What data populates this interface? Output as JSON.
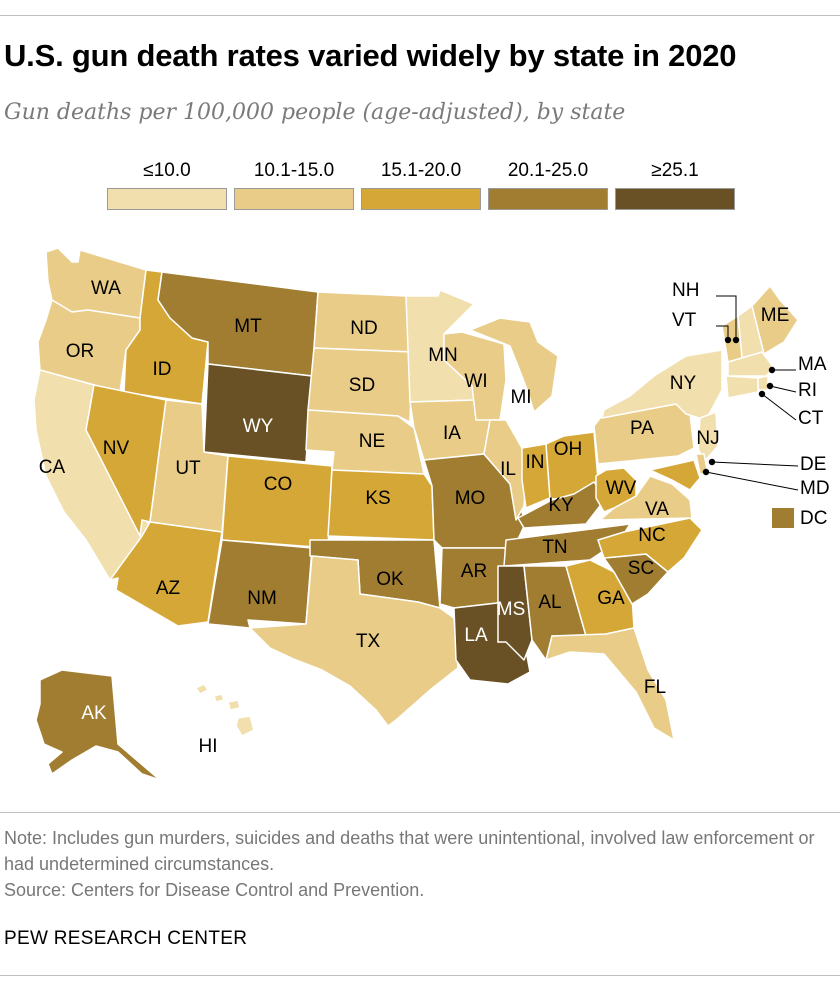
{
  "header": {
    "title": "U.S. gun death rates varied widely by state in 2020",
    "subtitle": "Gun deaths per 100,000 people (age-adjusted), by state"
  },
  "legend": {
    "items": [
      {
        "label": "≤10.0",
        "color": "#f2dfae"
      },
      {
        "label": "10.1-15.0",
        "color": "#e8cc87"
      },
      {
        "label": "15.1-20.0",
        "color": "#d5a736"
      },
      {
        "label": "20.1-25.0",
        "color": "#a17d32"
      },
      {
        "label": "≥25.1",
        "color": "#6a5125"
      }
    ]
  },
  "map": {
    "states": [
      {
        "abbr": "WA",
        "bin": 1
      },
      {
        "abbr": "OR",
        "bin": 1
      },
      {
        "abbr": "CA",
        "bin": 0
      },
      {
        "abbr": "ID",
        "bin": 2
      },
      {
        "abbr": "NV",
        "bin": 2
      },
      {
        "abbr": "MT",
        "bin": 3
      },
      {
        "abbr": "WY",
        "bin": 4
      },
      {
        "abbr": "UT",
        "bin": 1
      },
      {
        "abbr": "AZ",
        "bin": 2
      },
      {
        "abbr": "CO",
        "bin": 2
      },
      {
        "abbr": "NM",
        "bin": 3
      },
      {
        "abbr": "ND",
        "bin": 1
      },
      {
        "abbr": "SD",
        "bin": 1
      },
      {
        "abbr": "NE",
        "bin": 1
      },
      {
        "abbr": "KS",
        "bin": 2
      },
      {
        "abbr": "OK",
        "bin": 3
      },
      {
        "abbr": "TX",
        "bin": 1
      },
      {
        "abbr": "MN",
        "bin": 0
      },
      {
        "abbr": "IA",
        "bin": 1
      },
      {
        "abbr": "MO",
        "bin": 3
      },
      {
        "abbr": "AR",
        "bin": 3
      },
      {
        "abbr": "LA",
        "bin": 4
      },
      {
        "abbr": "WI",
        "bin": 1
      },
      {
        "abbr": "IL",
        "bin": 1
      },
      {
        "abbr": "MI",
        "bin": 1
      },
      {
        "abbr": "IN",
        "bin": 2
      },
      {
        "abbr": "OH",
        "bin": 2
      },
      {
        "abbr": "KY",
        "bin": 3
      },
      {
        "abbr": "TN",
        "bin": 3
      },
      {
        "abbr": "MS",
        "bin": 4
      },
      {
        "abbr": "AL",
        "bin": 3
      },
      {
        "abbr": "GA",
        "bin": 2
      },
      {
        "abbr": "FL",
        "bin": 1
      },
      {
        "abbr": "SC",
        "bin": 3
      },
      {
        "abbr": "NC",
        "bin": 2
      },
      {
        "abbr": "VA",
        "bin": 1
      },
      {
        "abbr": "WV",
        "bin": 2
      },
      {
        "abbr": "PA",
        "bin": 1
      },
      {
        "abbr": "NY",
        "bin": 0
      },
      {
        "abbr": "ME",
        "bin": 1
      },
      {
        "abbr": "NH",
        "bin": 0
      },
      {
        "abbr": "VT",
        "bin": 1
      },
      {
        "abbr": "MA",
        "bin": 0
      },
      {
        "abbr": "RI",
        "bin": 0
      },
      {
        "abbr": "CT",
        "bin": 0
      },
      {
        "abbr": "NJ",
        "bin": 0
      },
      {
        "abbr": "DE",
        "bin": 1
      },
      {
        "abbr": "MD",
        "bin": 2
      },
      {
        "abbr": "DC",
        "bin": 3
      },
      {
        "abbr": "AK",
        "bin": 3
      },
      {
        "abbr": "HI",
        "bin": 0
      }
    ]
  },
  "footer": {
    "note": "Note: Includes gun murders, suicides and deaths that were unintentional, involved law enforcement or had undetermined circumstances.",
    "source": "Source: Centers for Disease Control and Prevention.",
    "org": "PEW RESEARCH CENTER"
  }
}
